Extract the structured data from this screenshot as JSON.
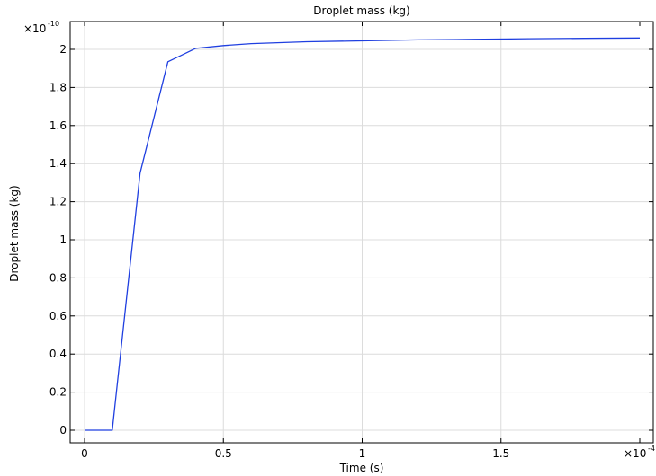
{
  "chart_data": {
    "type": "line",
    "title": "Droplet mass (kg)",
    "xlabel": "Time (s)",
    "ylabel": "Droplet mass (kg)",
    "x_multiplier": {
      "base": "×10",
      "exponent": "-4"
    },
    "y_multiplier": {
      "base": "×10",
      "exponent": "-10"
    },
    "xlim": [
      0,
      2
    ],
    "ylim": [
      0,
      2.1
    ],
    "x_ticks": [
      0,
      0.5,
      1,
      1.5
    ],
    "x_tick_labels": [
      "0",
      "0.5",
      "1",
      "1.5"
    ],
    "y_ticks": [
      0,
      0.2,
      0.4,
      0.6,
      0.8,
      1,
      1.2,
      1.4,
      1.6,
      1.8,
      2
    ],
    "y_tick_labels": [
      "0",
      "0.2",
      "0.4",
      "0.6",
      "0.8",
      "1",
      "1.2",
      "1.4",
      "1.6",
      "1.8",
      "2"
    ],
    "grid": true,
    "series": [
      {
        "color": "#1f3fe0",
        "x": [
          0,
          0.1,
          0.2,
          0.3,
          0.4,
          0.5,
          0.6,
          0.8,
          1.0,
          1.2,
          1.4,
          1.6,
          1.8,
          2.0
        ],
        "y": [
          0,
          0,
          1.35,
          1.935,
          2.005,
          2.02,
          2.03,
          2.04,
          2.045,
          2.05,
          2.053,
          2.056,
          2.058,
          2.06
        ]
      }
    ]
  }
}
